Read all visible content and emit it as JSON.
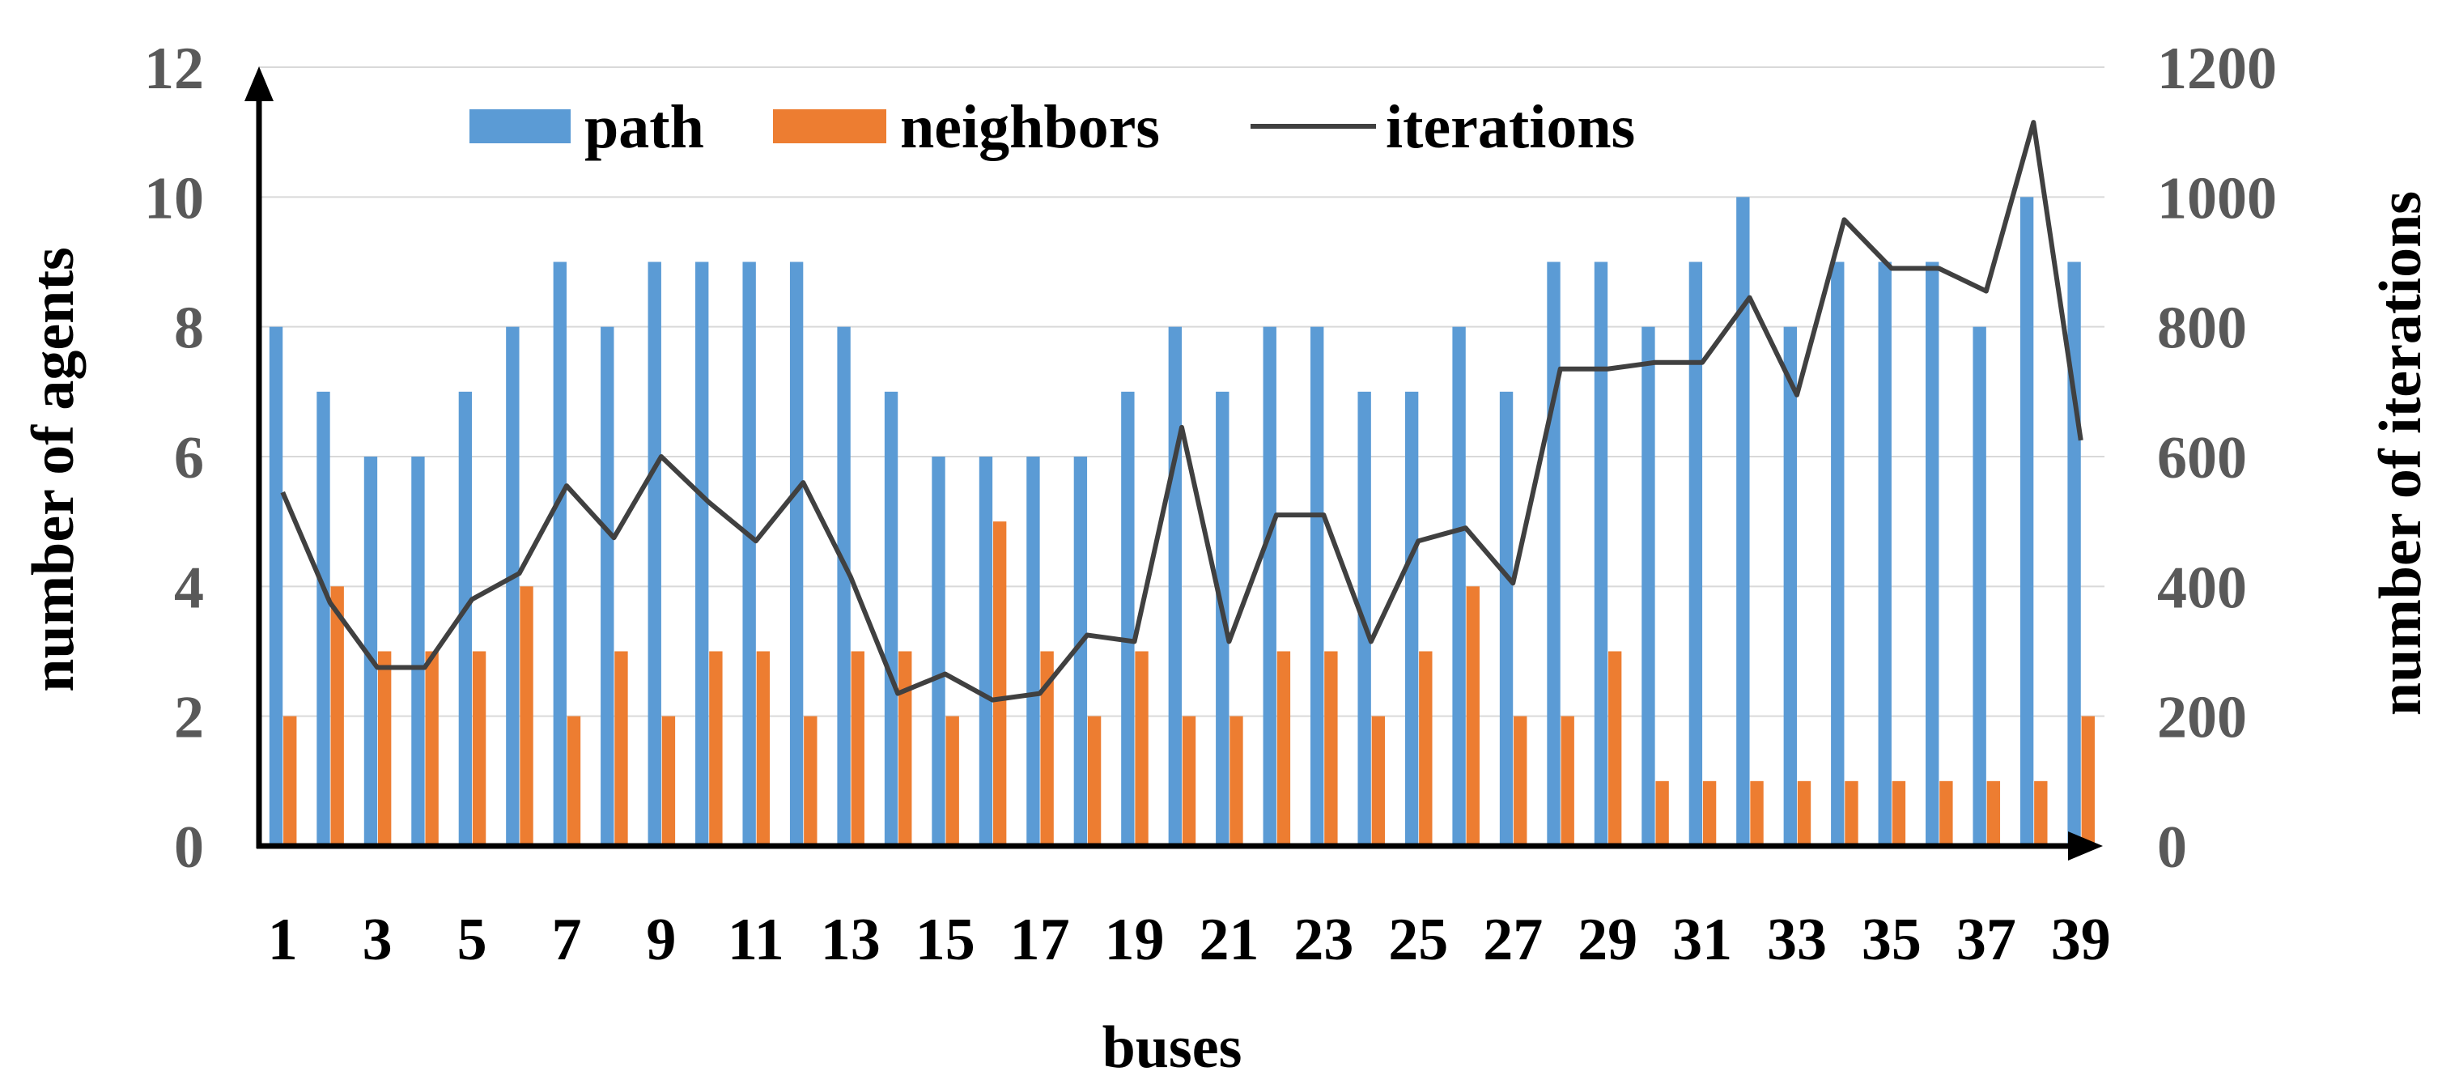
{
  "chart_data": {
    "type": "bar",
    "categories": [
      1,
      2,
      3,
      4,
      5,
      6,
      7,
      8,
      9,
      10,
      11,
      12,
      13,
      14,
      15,
      16,
      17,
      18,
      19,
      20,
      21,
      22,
      23,
      24,
      25,
      26,
      27,
      28,
      29,
      30,
      31,
      32,
      33,
      34,
      35,
      36,
      37,
      38,
      39
    ],
    "x_tick_labels": [
      "1",
      "3",
      "5",
      "7",
      "9",
      "11",
      "13",
      "15",
      "17",
      "19",
      "21",
      "23",
      "25",
      "27",
      "29",
      "31",
      "33",
      "35",
      "37",
      "39"
    ],
    "xlabel": "buses",
    "ylabel": "number of agents",
    "y2label": "number of iterations",
    "ylim": [
      0,
      12
    ],
    "y2lim": [
      0,
      1200
    ],
    "yticks": [
      0,
      2,
      4,
      6,
      8,
      10,
      12
    ],
    "y2ticks": [
      0,
      200,
      400,
      600,
      800,
      1000,
      1200
    ],
    "grid": true,
    "legend_position": "top-center",
    "series": [
      {
        "name": "path",
        "kind": "bar",
        "axis": "left",
        "color": "#5B9BD5",
        "values": [
          8,
          7,
          6,
          6,
          7,
          8,
          9,
          8,
          9,
          9,
          9,
          9,
          8,
          7,
          6,
          6,
          6,
          6,
          7,
          8,
          7,
          8,
          8,
          7,
          7,
          8,
          7,
          9,
          9,
          8,
          9,
          10,
          8,
          9,
          9,
          9,
          8,
          10,
          9
        ]
      },
      {
        "name": "neighbors",
        "kind": "bar",
        "axis": "left",
        "color": "#ED7D31",
        "values": [
          2,
          4,
          3,
          3,
          3,
          4,
          2,
          3,
          2,
          3,
          3,
          2,
          3,
          3,
          2,
          5,
          3,
          2,
          3,
          2,
          2,
          3,
          3,
          2,
          3,
          4,
          2,
          2,
          3,
          1,
          1,
          1,
          1,
          1,
          1,
          1,
          1,
          1,
          2
        ]
      },
      {
        "name": "iterations",
        "kind": "line",
        "axis": "right",
        "color": "#404040",
        "values": [
          545,
          375,
          275,
          275,
          380,
          420,
          555,
          475,
          600,
          530,
          470,
          560,
          415,
          235,
          265,
          225,
          235,
          325,
          315,
          645,
          315,
          510,
          510,
          315,
          470,
          490,
          405,
          735,
          735,
          745,
          745,
          845,
          695,
          965,
          890,
          890,
          855,
          1115,
          625
        ]
      }
    ]
  }
}
